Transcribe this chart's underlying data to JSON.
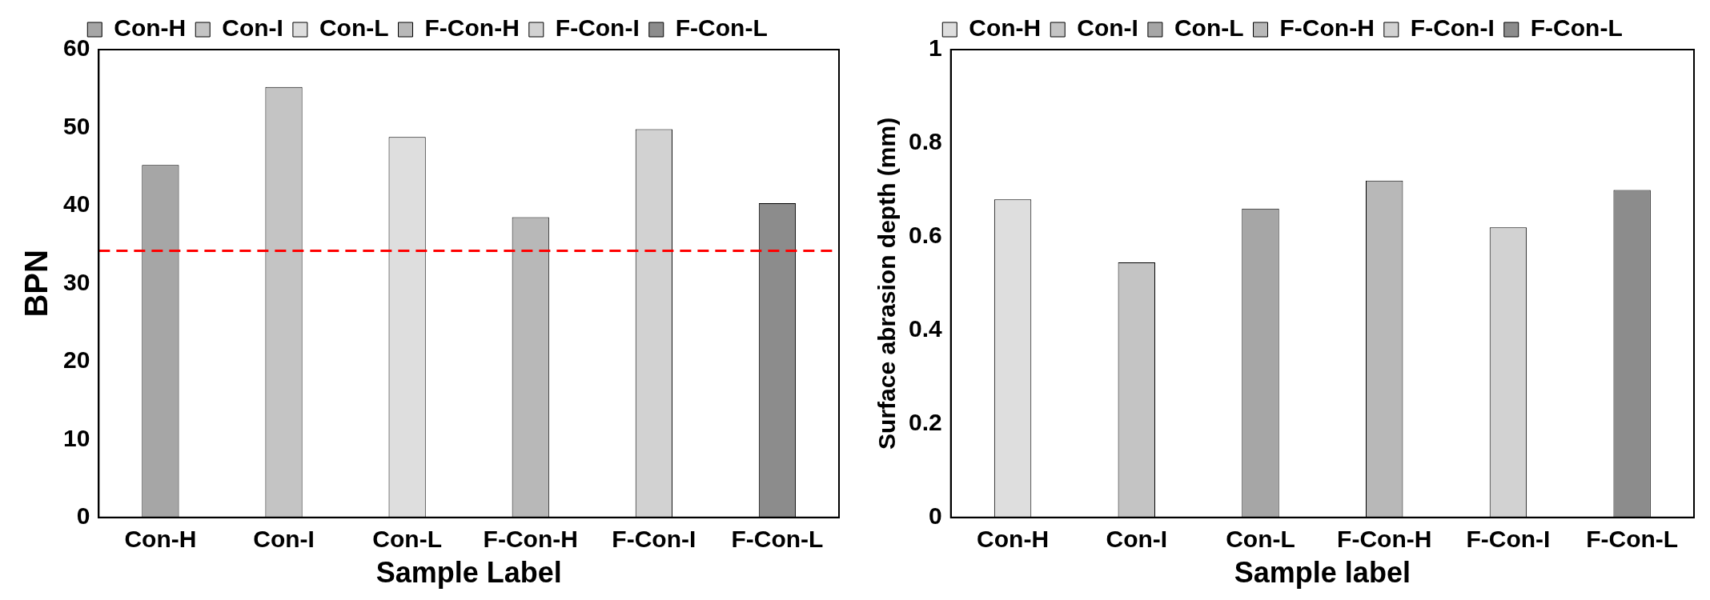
{
  "chart_data": [
    {
      "type": "bar",
      "xlabel": "Sample Label",
      "ylabel": "BPN",
      "categories": [
        "Con-H",
        "Con-I",
        "Con-L",
        "F-Con-H",
        "F-Con-I",
        "F-Con-L"
      ],
      "series": [
        {
          "name": "Con-H",
          "color": "#a6a6a6",
          "values": [
            45.2,
            null,
            null,
            null,
            null,
            null
          ]
        },
        {
          "name": "Con-I",
          "color": "#c4c4c4",
          "values": [
            null,
            55.2,
            null,
            null,
            null,
            null
          ]
        },
        {
          "name": "Con-L",
          "color": "#dedede",
          "values": [
            null,
            null,
            48.8,
            null,
            null,
            null
          ]
        },
        {
          "name": "F-Con-H",
          "color": "#b8b8b8",
          "values": [
            null,
            null,
            null,
            38.5,
            null,
            null
          ]
        },
        {
          "name": "F-Con-I",
          "color": "#d2d2d2",
          "values": [
            null,
            null,
            null,
            null,
            49.8,
            null
          ]
        },
        {
          "name": "F-Con-L",
          "color": "#8c8c8c",
          "values": [
            null,
            null,
            null,
            null,
            null,
            40.3
          ]
        }
      ],
      "ylim": [
        0,
        60
      ],
      "yticks": [
        0,
        10,
        20,
        30,
        40,
        50,
        60
      ],
      "grid": false,
      "legend": "top",
      "ref_lines": [
        {
          "axis": "y",
          "value": 34.2,
          "color": "#ff0000",
          "line_style": "dashed"
        }
      ]
    },
    {
      "type": "bar",
      "xlabel": "Sample label",
      "ylabel": "Surface abrasion depth (mm)",
      "categories": [
        "Con-H",
        "Con-I",
        "Con-L",
        "F-Con-H",
        "F-Con-I",
        "F-Con-L"
      ],
      "series": [
        {
          "name": "Con-H",
          "color": "#dedede",
          "values": [
            0.68,
            null,
            null,
            null,
            null,
            null
          ]
        },
        {
          "name": "Con-I",
          "color": "#c4c4c4",
          "values": [
            null,
            0.545,
            null,
            null,
            null,
            null
          ]
        },
        {
          "name": "Con-L",
          "color": "#a6a6a6",
          "values": [
            null,
            null,
            0.66,
            null,
            null,
            null
          ]
        },
        {
          "name": "F-Con-H",
          "color": "#b8b8b8",
          "values": [
            null,
            null,
            null,
            0.72,
            null,
            null
          ]
        },
        {
          "name": "F-Con-I",
          "color": "#d2d2d2",
          "values": [
            null,
            null,
            null,
            null,
            0.62,
            null
          ]
        },
        {
          "name": "F-Con-L",
          "color": "#8c8c8c",
          "values": [
            null,
            null,
            null,
            null,
            null,
            0.7
          ]
        }
      ],
      "ylim": [
        0,
        1
      ],
      "yticks": [
        0,
        0.2,
        0.4,
        0.6,
        0.8,
        1
      ],
      "grid": false,
      "legend": "top"
    }
  ]
}
